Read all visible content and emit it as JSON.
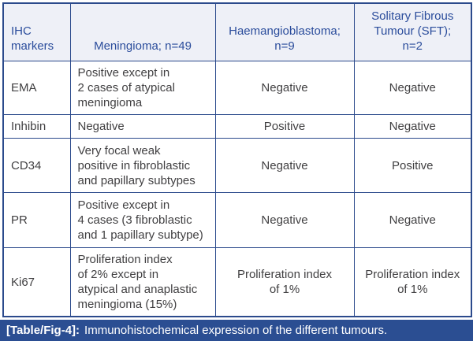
{
  "colors": {
    "border": "#2b4a8c",
    "header_text": "#2b4d9c",
    "header_bg": "#eef0f7",
    "body_text": "#414042",
    "caption_bg": "#2b4e92",
    "caption_text": "#ffffff"
  },
  "table": {
    "columns": [
      {
        "label": "IHC\nmarkers"
      },
      {
        "label": "Meningioma; n=49"
      },
      {
        "label": "Haemangioblastoma;\nn=9"
      },
      {
        "label": "Solitary Fibrous\nTumour (SFT);\nn=2"
      }
    ],
    "rows": [
      {
        "marker": "EMA",
        "meningioma": "Positive except in\n2 cases of atypical\nmeningioma",
        "haemangioblastoma": "Negative",
        "sft": "Negative"
      },
      {
        "marker": "Inhibin",
        "meningioma": "Negative",
        "haemangioblastoma": "Positive",
        "sft": "Negative"
      },
      {
        "marker": "CD34",
        "meningioma": "Very focal weak\npositive in fibroblastic\nand papillary subtypes",
        "haemangioblastoma": "Negative",
        "sft": "Positive"
      },
      {
        "marker": "PR",
        "meningioma": "Positive except in\n4 cases (3 fibroblastic\nand 1 papillary subtype)",
        "haemangioblastoma": "Negative",
        "sft": "Negative"
      },
      {
        "marker": "Ki67",
        "meningioma": "Proliferation index\nof 2% except in\natypical and anaplastic\nmeningioma (15%)",
        "haemangioblastoma": "Proliferation index\nof 1%",
        "sft": "Proliferation index\nof 1%"
      }
    ]
  },
  "caption": {
    "label": "[Table/Fig-4]:",
    "text": "Immunohistochemical expression of the different tumours."
  }
}
